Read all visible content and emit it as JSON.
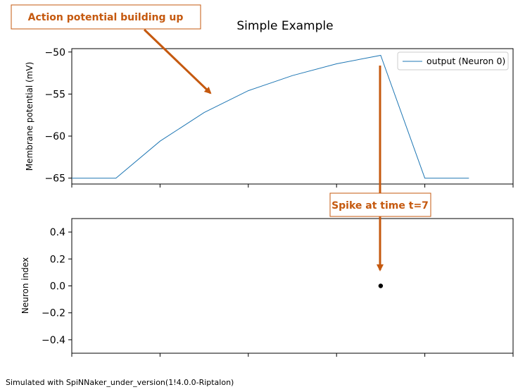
{
  "chart_data": [
    {
      "type": "line",
      "title": "Simple Example",
      "ylabel": "Membrane potential (mV)",
      "xlim": [
        0,
        10
      ],
      "ylim": [
        -65.7,
        -49.6
      ],
      "yticks": [
        -50,
        -55,
        -60,
        -65
      ],
      "ytick_labels": [
        "−50",
        "−55",
        "−60",
        "−65"
      ],
      "xticks": [
        0,
        2,
        4,
        6,
        8,
        10
      ],
      "legend_position": "top-right",
      "series": [
        {
          "name": "output (Neuron 0)",
          "color": "#1f77b4",
          "x": [
            0,
            1,
            2,
            3,
            4,
            5,
            6,
            7,
            8,
            9
          ],
          "y": [
            -65.0,
            -65.0,
            -60.6,
            -57.2,
            -54.6,
            -52.8,
            -51.4,
            -50.4,
            -65.0,
            -65.0
          ]
        }
      ]
    },
    {
      "type": "scatter",
      "ylabel": "Neuron index",
      "xlim": [
        0,
        10
      ],
      "ylim": [
        -0.5,
        0.5
      ],
      "yticks": [
        0.4,
        0.2,
        0.0,
        -0.2,
        -0.4
      ],
      "ytick_labels": [
        "0.4",
        "0.2",
        "0.0",
        "−0.2",
        "−0.4"
      ],
      "xticks": [
        0,
        2,
        4,
        6,
        8,
        10
      ],
      "points": [
        {
          "x": 7,
          "y": 0
        }
      ]
    }
  ],
  "annotations": {
    "buildup": {
      "text": "Action potential building up"
    },
    "spike": {
      "text": "Spike at time t=7"
    }
  },
  "colors": {
    "annotation": "#c5590f",
    "line": "#1f77b4",
    "spike": "#000000"
  },
  "footer": {
    "text": "Simulated with SpiNNaker_under_version(1!4.0.0-Riptalon)"
  }
}
